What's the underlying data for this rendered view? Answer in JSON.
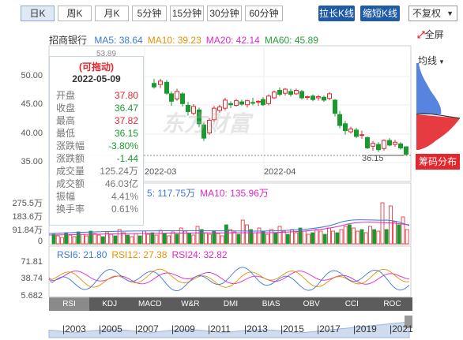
{
  "periods": [
    "日K",
    "周K",
    "月K",
    "5分钟",
    "15分钟",
    "30分钟",
    "60分钟"
  ],
  "active_period": 0,
  "stretch_label": "拉长K线",
  "shrink_label": "缩短K线",
  "adjust_label": "不复权",
  "stock_name": "招商银行",
  "ma_legend": [
    {
      "label": "MA5: 38.64",
      "color": "#3c78d8"
    },
    {
      "label": "MA10: 39.23",
      "color": "#e69100"
    },
    {
      "label": "MA20: 42.14",
      "color": "#e026c8"
    },
    {
      "label": "MA60: 45.89",
      "color": "#27a13a"
    }
  ],
  "fullscreen_label": "全屏",
  "junxian_label": "均线",
  "chip_label": "筹码分布",
  "price_axis": [
    "50.00",
    "45.00",
    "40.00",
    "35.00"
  ],
  "price_top_partial": "53.89",
  "price_low_note": "36.15",
  "date_labels": [
    "2022-03",
    "2022-04"
  ],
  "watermark": "东方财富",
  "tooltip": {
    "title": "(可拖动)",
    "date": "2022-05-09",
    "rows": [
      {
        "k": "开盘",
        "v": "37.80",
        "color": "#e4262d"
      },
      {
        "k": "收盘",
        "v": "36.47",
        "color": "#1a9a2e"
      },
      {
        "k": "最高",
        "v": "37.82",
        "color": "#e4262d"
      },
      {
        "k": "最低",
        "v": "36.15",
        "color": "#1a9a2e"
      },
      {
        "k": "涨跌幅",
        "v": "-3.80%",
        "color": "#1a9a2e"
      },
      {
        "k": "涨跌额",
        "v": "-1.44",
        "color": "#1a9a2e"
      },
      {
        "k": "成交量",
        "v": "125.24万",
        "color": "#777"
      },
      {
        "k": "成交额",
        "v": "46.03亿",
        "color": "#777"
      },
      {
        "k": "振幅",
        "v": "4.41%",
        "color": "#777"
      },
      {
        "k": "换手率",
        "v": "0.61%",
        "color": "#777"
      }
    ]
  },
  "vol_legend": [
    {
      "label": "5: 117.75万",
      "color": "#3c78d8"
    },
    {
      "label": "MA10: 135.96万",
      "color": "#e026c8"
    }
  ],
  "vol_axis": [
    "275.5万",
    "183.6万",
    "91.84万",
    "0"
  ],
  "rsi_legend": [
    {
      "label": "RSI6: 21.80",
      "color": "#3c78d8"
    },
    {
      "label": "RSI12: 27.38",
      "color": "#e69100"
    },
    {
      "label": "RSI24: 32.82",
      "color": "#e026c8"
    }
  ],
  "rsi_axis": [
    "71.81",
    "38.74",
    "5.682"
  ],
  "indicator_tabs": [
    "RSI",
    "KDJ",
    "MACD",
    "W&R",
    "DMI",
    "BIAS",
    "OBV",
    "CCI",
    "ROC"
  ],
  "active_indicator": 0,
  "years": [
    "2003",
    "2005",
    "2007",
    "2009",
    "2011",
    "2013",
    "2015",
    "2017",
    "2019",
    "2021"
  ],
  "colors": {
    "up": "#e4262d",
    "down": "#1a9a2e",
    "accent": "#1e5aa8",
    "chip_blue": "#3a6fd8",
    "chip_red": "#e4262d"
  }
}
